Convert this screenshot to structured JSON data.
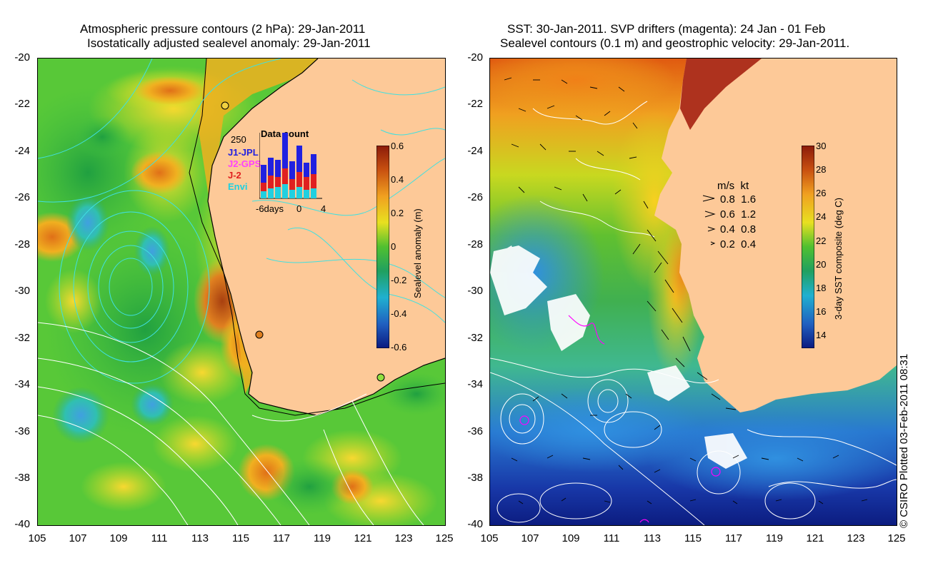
{
  "left_panel": {
    "title_line1": "Atmospheric pressure contours (2 hPa): 29-Jan-2011",
    "title_line2": "Isostatically adjusted sealevel anomaly: 29-Jan-2011",
    "y_ticks": [
      "-20",
      "-22",
      "-24",
      "-26",
      "-28",
      "-30",
      "-32",
      "-34",
      "-36",
      "-38",
      "-40"
    ],
    "x_ticks": [
      "105",
      "107",
      "109",
      "111",
      "113",
      "115",
      "117",
      "119",
      "121",
      "123",
      "125"
    ],
    "data_count": {
      "title": "Data count",
      "y_max_label": "250",
      "x_labels": [
        "-6days",
        "0",
        "4"
      ],
      "legend": [
        {
          "label": "J1-JPL",
          "color": "#2020e0"
        },
        {
          "label": "J2-GPS",
          "color": "#ff40ff"
        },
        {
          "label": "J-2",
          "color": "#e02020"
        },
        {
          "label": "Envi",
          "color": "#20d0e0"
        }
      ]
    },
    "colorbar": {
      "title": "Sealevel anomaly (m)",
      "ticks": [
        "0.6",
        "0.4",
        "0.2",
        "0",
        "-0.2",
        "-0.4",
        "-0.6"
      ]
    }
  },
  "right_panel": {
    "title_line1": "SST: 30-Jan-2011. SVP drifters (magenta): 24 Jan - 01 Feb",
    "title_line2": "Sealevel contours (0.1 m) and geostrophic velocity: 29-Jan-2011.",
    "y_ticks": [
      "-20",
      "-22",
      "-24",
      "-26",
      "-28",
      "-30",
      "-32",
      "-34",
      "-36",
      "-38",
      "-40"
    ],
    "x_ticks": [
      "105",
      "107",
      "109",
      "111",
      "113",
      "115",
      "117",
      "119",
      "121",
      "123",
      "125"
    ],
    "velocity_legend": {
      "header": "m/s  kt",
      "rows": [
        "0.8  1.6",
        "0.6  1.2",
        "0.4  0.8",
        "0.2  0.4"
      ]
    },
    "colorbar": {
      "title": "3-day SST composite (deg C)",
      "ticks": [
        "30",
        "28",
        "26",
        "24",
        "22",
        "20",
        "18",
        "16",
        "14"
      ]
    }
  },
  "copyright": "© CSIRO Plotted 03-Feb-2011 08:31",
  "colors": {
    "land": "#fdc998",
    "contour_cyan": "#40e0e0",
    "contour_white": "#ffffff",
    "drifter": "#ff00ff"
  }
}
